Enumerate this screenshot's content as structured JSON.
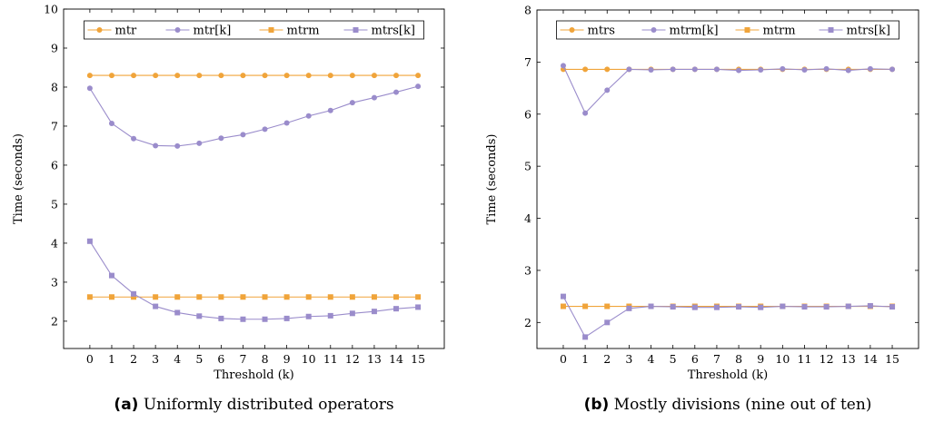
{
  "colors": {
    "orange": "#F0A43A",
    "purple": "#9A8CCB"
  },
  "chart_data": [
    {
      "type": "line",
      "caption_tag": "(a)",
      "caption": "Uniformly distributed operators",
      "xlabel": "Threshold (k)",
      "ylabel": "Time (seconds)",
      "xlim": [
        -1.2,
        16.2
      ],
      "ylim": [
        1.3,
        10
      ],
      "x": [
        0,
        1,
        2,
        3,
        4,
        5,
        6,
        7,
        8,
        9,
        10,
        11,
        12,
        13,
        14,
        15
      ],
      "x_ticks": [
        "0",
        "1",
        "2",
        "3",
        "4",
        "5",
        "6",
        "7",
        "8",
        "9",
        "10",
        "11",
        "12",
        "13",
        "14",
        "15"
      ],
      "y_ticks": [
        2,
        3,
        4,
        5,
        6,
        7,
        8,
        9,
        10
      ],
      "legend_position": "top-center",
      "series": [
        {
          "name": "mtr",
          "marker": "circle",
          "color": "orange",
          "values": [
            8.3,
            8.3,
            8.3,
            8.3,
            8.3,
            8.3,
            8.3,
            8.3,
            8.3,
            8.3,
            8.3,
            8.3,
            8.3,
            8.3,
            8.3,
            8.3
          ]
        },
        {
          "name": "mtr[k]",
          "marker": "circle",
          "color": "purple",
          "values": [
            7.97,
            7.07,
            6.68,
            6.5,
            6.49,
            6.56,
            6.69,
            6.78,
            6.92,
            7.08,
            7.26,
            7.4,
            7.6,
            7.73,
            7.87,
            8.02
          ]
        },
        {
          "name": "mtrm",
          "marker": "square",
          "color": "orange",
          "values": [
            2.62,
            2.62,
            2.62,
            2.62,
            2.62,
            2.62,
            2.62,
            2.62,
            2.62,
            2.62,
            2.62,
            2.62,
            2.62,
            2.62,
            2.62,
            2.62
          ]
        },
        {
          "name": "mtrs[k]",
          "marker": "square",
          "color": "purple",
          "values": [
            4.05,
            3.17,
            2.7,
            2.38,
            2.22,
            2.13,
            2.07,
            2.05,
            2.05,
            2.07,
            2.12,
            2.14,
            2.2,
            2.25,
            2.32,
            2.36
          ]
        }
      ]
    },
    {
      "type": "line",
      "caption_tag": "(b)",
      "caption": "Mostly divisions (nine out of ten)",
      "xlabel": "Threshold (k)",
      "ylabel": "Time (seconds)",
      "xlim": [
        -1.2,
        16.2
      ],
      "ylim": [
        1.5,
        8
      ],
      "x": [
        0,
        1,
        2,
        3,
        4,
        5,
        6,
        7,
        8,
        9,
        10,
        11,
        12,
        13,
        14,
        15
      ],
      "x_ticks": [
        "0",
        "1",
        "2",
        "3",
        "4",
        "5",
        "6",
        "7",
        "8",
        "9",
        "10",
        "11",
        "12",
        "13",
        "14",
        "15"
      ],
      "y_ticks": [
        2,
        3,
        4,
        5,
        6,
        7,
        8
      ],
      "legend_position": "top-center",
      "series": [
        {
          "name": "mtrs",
          "marker": "circle",
          "color": "orange",
          "values": [
            6.86,
            6.86,
            6.86,
            6.86,
            6.86,
            6.86,
            6.86,
            6.86,
            6.86,
            6.86,
            6.86,
            6.86,
            6.86,
            6.86,
            6.86,
            6.86
          ]
        },
        {
          "name": "mtrm[k]",
          "marker": "circle",
          "color": "purple",
          "values": [
            6.93,
            6.02,
            6.46,
            6.86,
            6.85,
            6.86,
            6.86,
            6.86,
            6.84,
            6.85,
            6.87,
            6.85,
            6.87,
            6.84,
            6.87,
            6.86
          ]
        },
        {
          "name": "mtrm",
          "marker": "square",
          "color": "orange",
          "values": [
            2.31,
            2.31,
            2.31,
            2.31,
            2.31,
            2.31,
            2.31,
            2.31,
            2.31,
            2.31,
            2.31,
            2.31,
            2.31,
            2.31,
            2.31,
            2.31
          ]
        },
        {
          "name": "mtrs[k]",
          "marker": "square",
          "color": "purple",
          "values": [
            2.5,
            1.72,
            2.0,
            2.27,
            2.31,
            2.3,
            2.29,
            2.29,
            2.3,
            2.29,
            2.31,
            2.3,
            2.3,
            2.31,
            2.32,
            2.3
          ]
        }
      ]
    }
  ]
}
